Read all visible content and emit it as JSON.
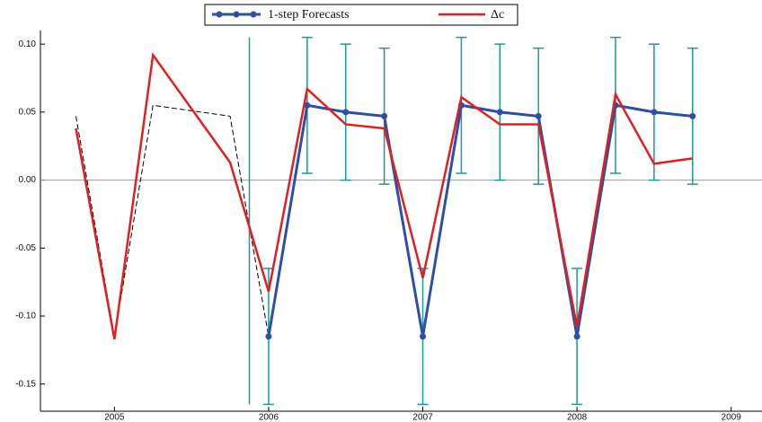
{
  "chart_data": {
    "type": "line",
    "x_fitted": [
      2004.75,
      2005.0,
      2005.25,
      2005.75,
      2006.0
    ],
    "fitted": [
      0.047,
      -0.115,
      0.055,
      0.047,
      -0.115
    ],
    "forecast_start": 2005.875,
    "series": [
      {
        "name": "1-step Forecasts",
        "color": "#2e4fa8",
        "x": [
          2006.0,
          2006.25,
          2006.5,
          2006.75,
          2007.0,
          2007.25,
          2007.5,
          2007.75,
          2008.0,
          2008.25,
          2008.5,
          2008.75
        ],
        "values": [
          -0.115,
          0.055,
          0.05,
          0.047,
          -0.115,
          0.055,
          0.05,
          0.047,
          -0.115,
          0.055,
          0.05,
          0.047
        ],
        "errors": [
          0.05,
          0.05,
          0.05,
          0.05,
          0.05,
          0.05,
          0.05,
          0.05,
          0.05,
          0.05,
          0.05,
          0.05
        ],
        "error_color": "#1a9a9a"
      },
      {
        "name": "Δc",
        "color": "#e02020",
        "x": [
          2004.75,
          2005.0,
          2005.25,
          2005.75,
          2006.0,
          2006.25,
          2006.5,
          2006.75,
          2007.0,
          2007.25,
          2007.5,
          2007.75,
          2008.0,
          2008.25,
          2008.5,
          2008.75
        ],
        "values": [
          0.038,
          -0.117,
          0.092,
          0.013,
          -0.082,
          0.067,
          0.041,
          0.038,
          -0.072,
          0.061,
          0.041,
          0.041,
          -0.108,
          0.063,
          0.012,
          0.016
        ]
      }
    ],
    "xlim": [
      2004.52,
      2009.2
    ],
    "xticks": [
      2005,
      2006,
      2007,
      2008,
      2009
    ],
    "ylim": [
      -0.17,
      0.11
    ],
    "yticks": [
      {
        "value": 0.1,
        "label": "0.10"
      },
      {
        "value": 0.05,
        "label": "0.05"
      },
      {
        "value": 0,
        "label": "0.00"
      },
      {
        "value": -0.05,
        "label": "-0.05"
      },
      {
        "value": -0.1,
        "label": "-0.10"
      },
      {
        "value": -0.15,
        "label": "-0.15"
      }
    ]
  }
}
